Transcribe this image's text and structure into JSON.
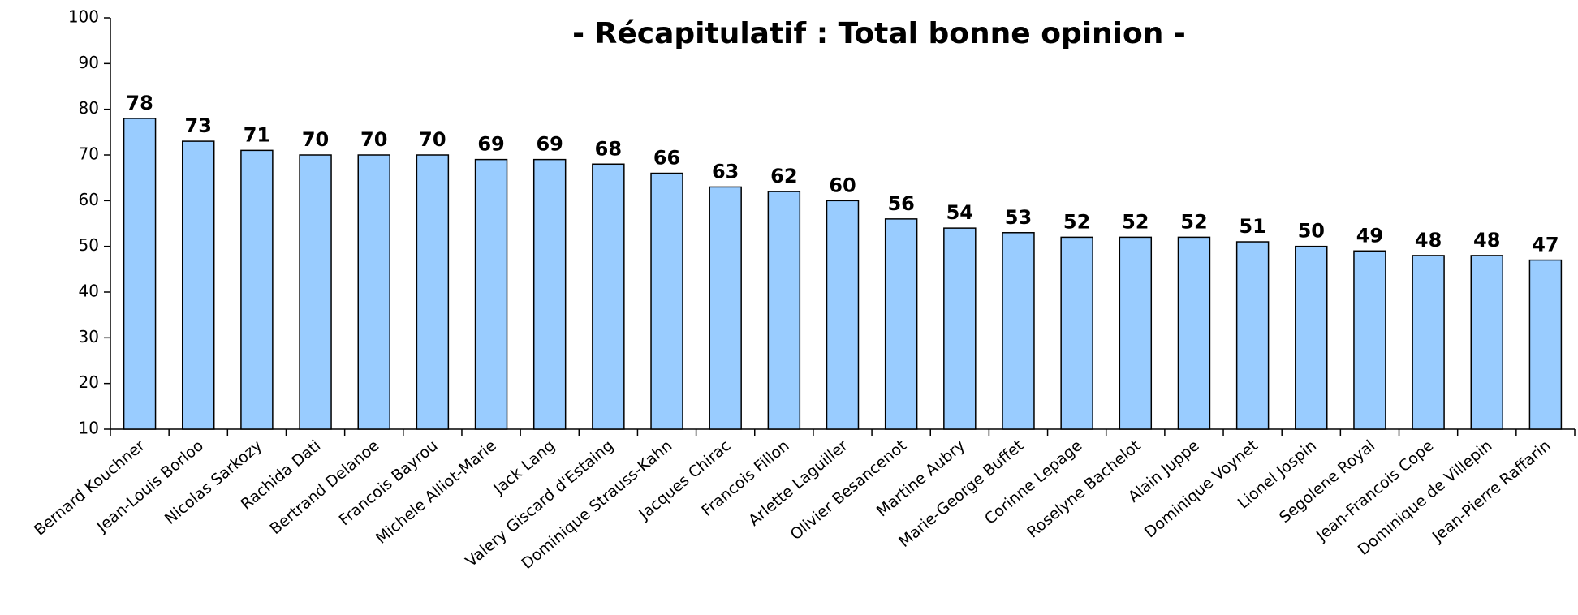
{
  "chart_data": {
    "type": "bar",
    "title": "- Récapitulatif : Total bonne opinion -",
    "categories": [
      "Bernard Kouchner",
      "Jean-Louis Borloo",
      "Nicolas Sarkozy",
      "Rachida Dati",
      "Bertrand Delanoe",
      "Francois Bayrou",
      "Michele Alliot-Marie",
      "Jack Lang",
      "Valery Giscard d'Estaing",
      "Dominique Strauss-Kahn",
      "Jacques Chirac",
      "Francois Fillon",
      "Arlette Laguiller",
      "Olivier Besancenot",
      "Martine Aubry",
      "Marie-George Buffet",
      "Corinne Lepage",
      "Roselyne Bachelot",
      "Alain Juppe",
      "Dominique Voynet",
      "Lionel Jospin",
      "Segolene Royal",
      "Jean-Francois Cope",
      "Dominique de Villepin",
      "Jean-Pierre Raffarin"
    ],
    "values": [
      78,
      73,
      71,
      70,
      70,
      70,
      69,
      69,
      68,
      66,
      63,
      62,
      60,
      56,
      54,
      53,
      52,
      52,
      52,
      51,
      50,
      49,
      48,
      48,
      47
    ],
    "color": "#99ccff",
    "ylim": [
      10,
      100
    ],
    "yticks": [
      10,
      20,
      30,
      40,
      50,
      60,
      70,
      80,
      90,
      100
    ],
    "grid": false
  }
}
